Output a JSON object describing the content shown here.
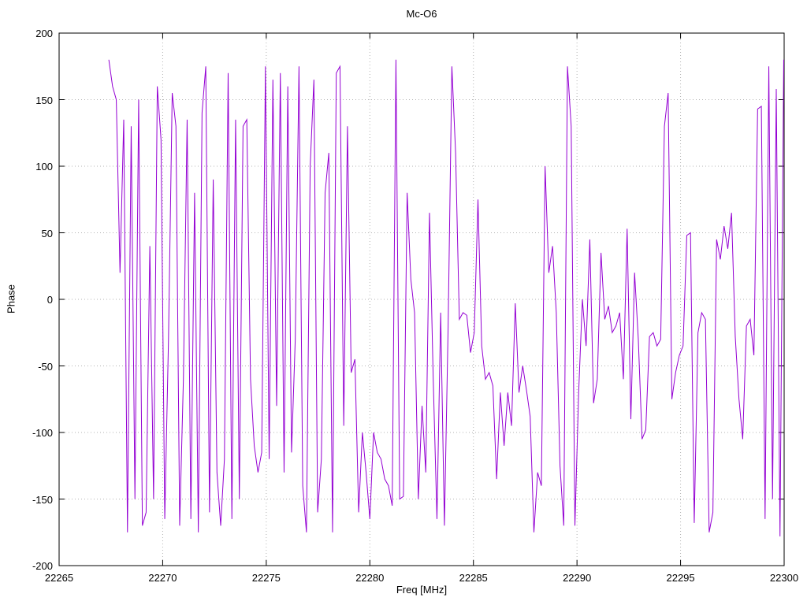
{
  "title": "Mc-O6",
  "xlabel": "Freq [MHz]",
  "ylabel": "Phase",
  "line_color": "#9400D3",
  "grid_color": "#b3b3b3",
  "border_color": "#000000",
  "chart_data": {
    "type": "line",
    "title": "Mc-O6",
    "xlabel": "Freq [MHz]",
    "ylabel": "Phase",
    "xlim": [
      22265,
      22300
    ],
    "ylim": [
      -200,
      200
    ],
    "grid": true,
    "legend": "none",
    "xticks": [
      22265,
      22270,
      22275,
      22280,
      22285,
      22290,
      22295,
      22300
    ],
    "yticks": [
      -200,
      -150,
      -100,
      -50,
      0,
      50,
      100,
      150,
      200
    ],
    "series": [
      {
        "name": "phase",
        "x_start": 22267.4,
        "x_step": 0.18,
        "values": [
          180,
          160,
          150,
          20,
          135,
          -175,
          130,
          -150,
          150,
          -170,
          -160,
          40,
          -150,
          160,
          120,
          -165,
          -30,
          155,
          130,
          -170,
          -60,
          135,
          -165,
          80,
          -175,
          140,
          175,
          -160,
          90,
          -130,
          -170,
          -120,
          170,
          -165,
          135,
          -150,
          130,
          135,
          -60,
          -110,
          -130,
          -115,
          175,
          -120,
          165,
          -80,
          170,
          -130,
          160,
          -115,
          -30,
          175,
          -140,
          -175,
          100,
          165,
          -160,
          -120,
          80,
          110,
          -175,
          170,
          175,
          -95,
          130,
          -55,
          -45,
          -160,
          -100,
          -130,
          -165,
          -100,
          -115,
          -120,
          -135,
          -140,
          -155,
          180,
          -150,
          -148,
          80,
          15,
          -10,
          -150,
          -80,
          -130,
          65,
          -60,
          -165,
          -10,
          -170,
          -20,
          175,
          110,
          -15,
          -10,
          -12,
          -40,
          -25,
          75,
          -35,
          -60,
          -55,
          -65,
          -135,
          -70,
          -110,
          -70,
          -95,
          -3,
          -70,
          -50,
          -68,
          -88,
          -175,
          -130,
          -140,
          100,
          20,
          40,
          -10,
          -125,
          -170,
          175,
          130,
          -170,
          -70,
          0,
          -35,
          45,
          -78,
          -60,
          35,
          -15,
          -5,
          -25,
          -20,
          -10,
          -60,
          53,
          -90,
          20,
          -30,
          -105,
          -98,
          -28,
          -25,
          -35,
          -30,
          130,
          155,
          -75,
          -55,
          -42,
          -35,
          48,
          50,
          -168,
          -25,
          -10,
          -15,
          -175,
          -160,
          45,
          30,
          55,
          38,
          65,
          -28,
          -75,
          -105,
          -20,
          -15,
          -42,
          143,
          145,
          -165,
          175,
          -150,
          158,
          -178,
          180
        ]
      }
    ]
  }
}
